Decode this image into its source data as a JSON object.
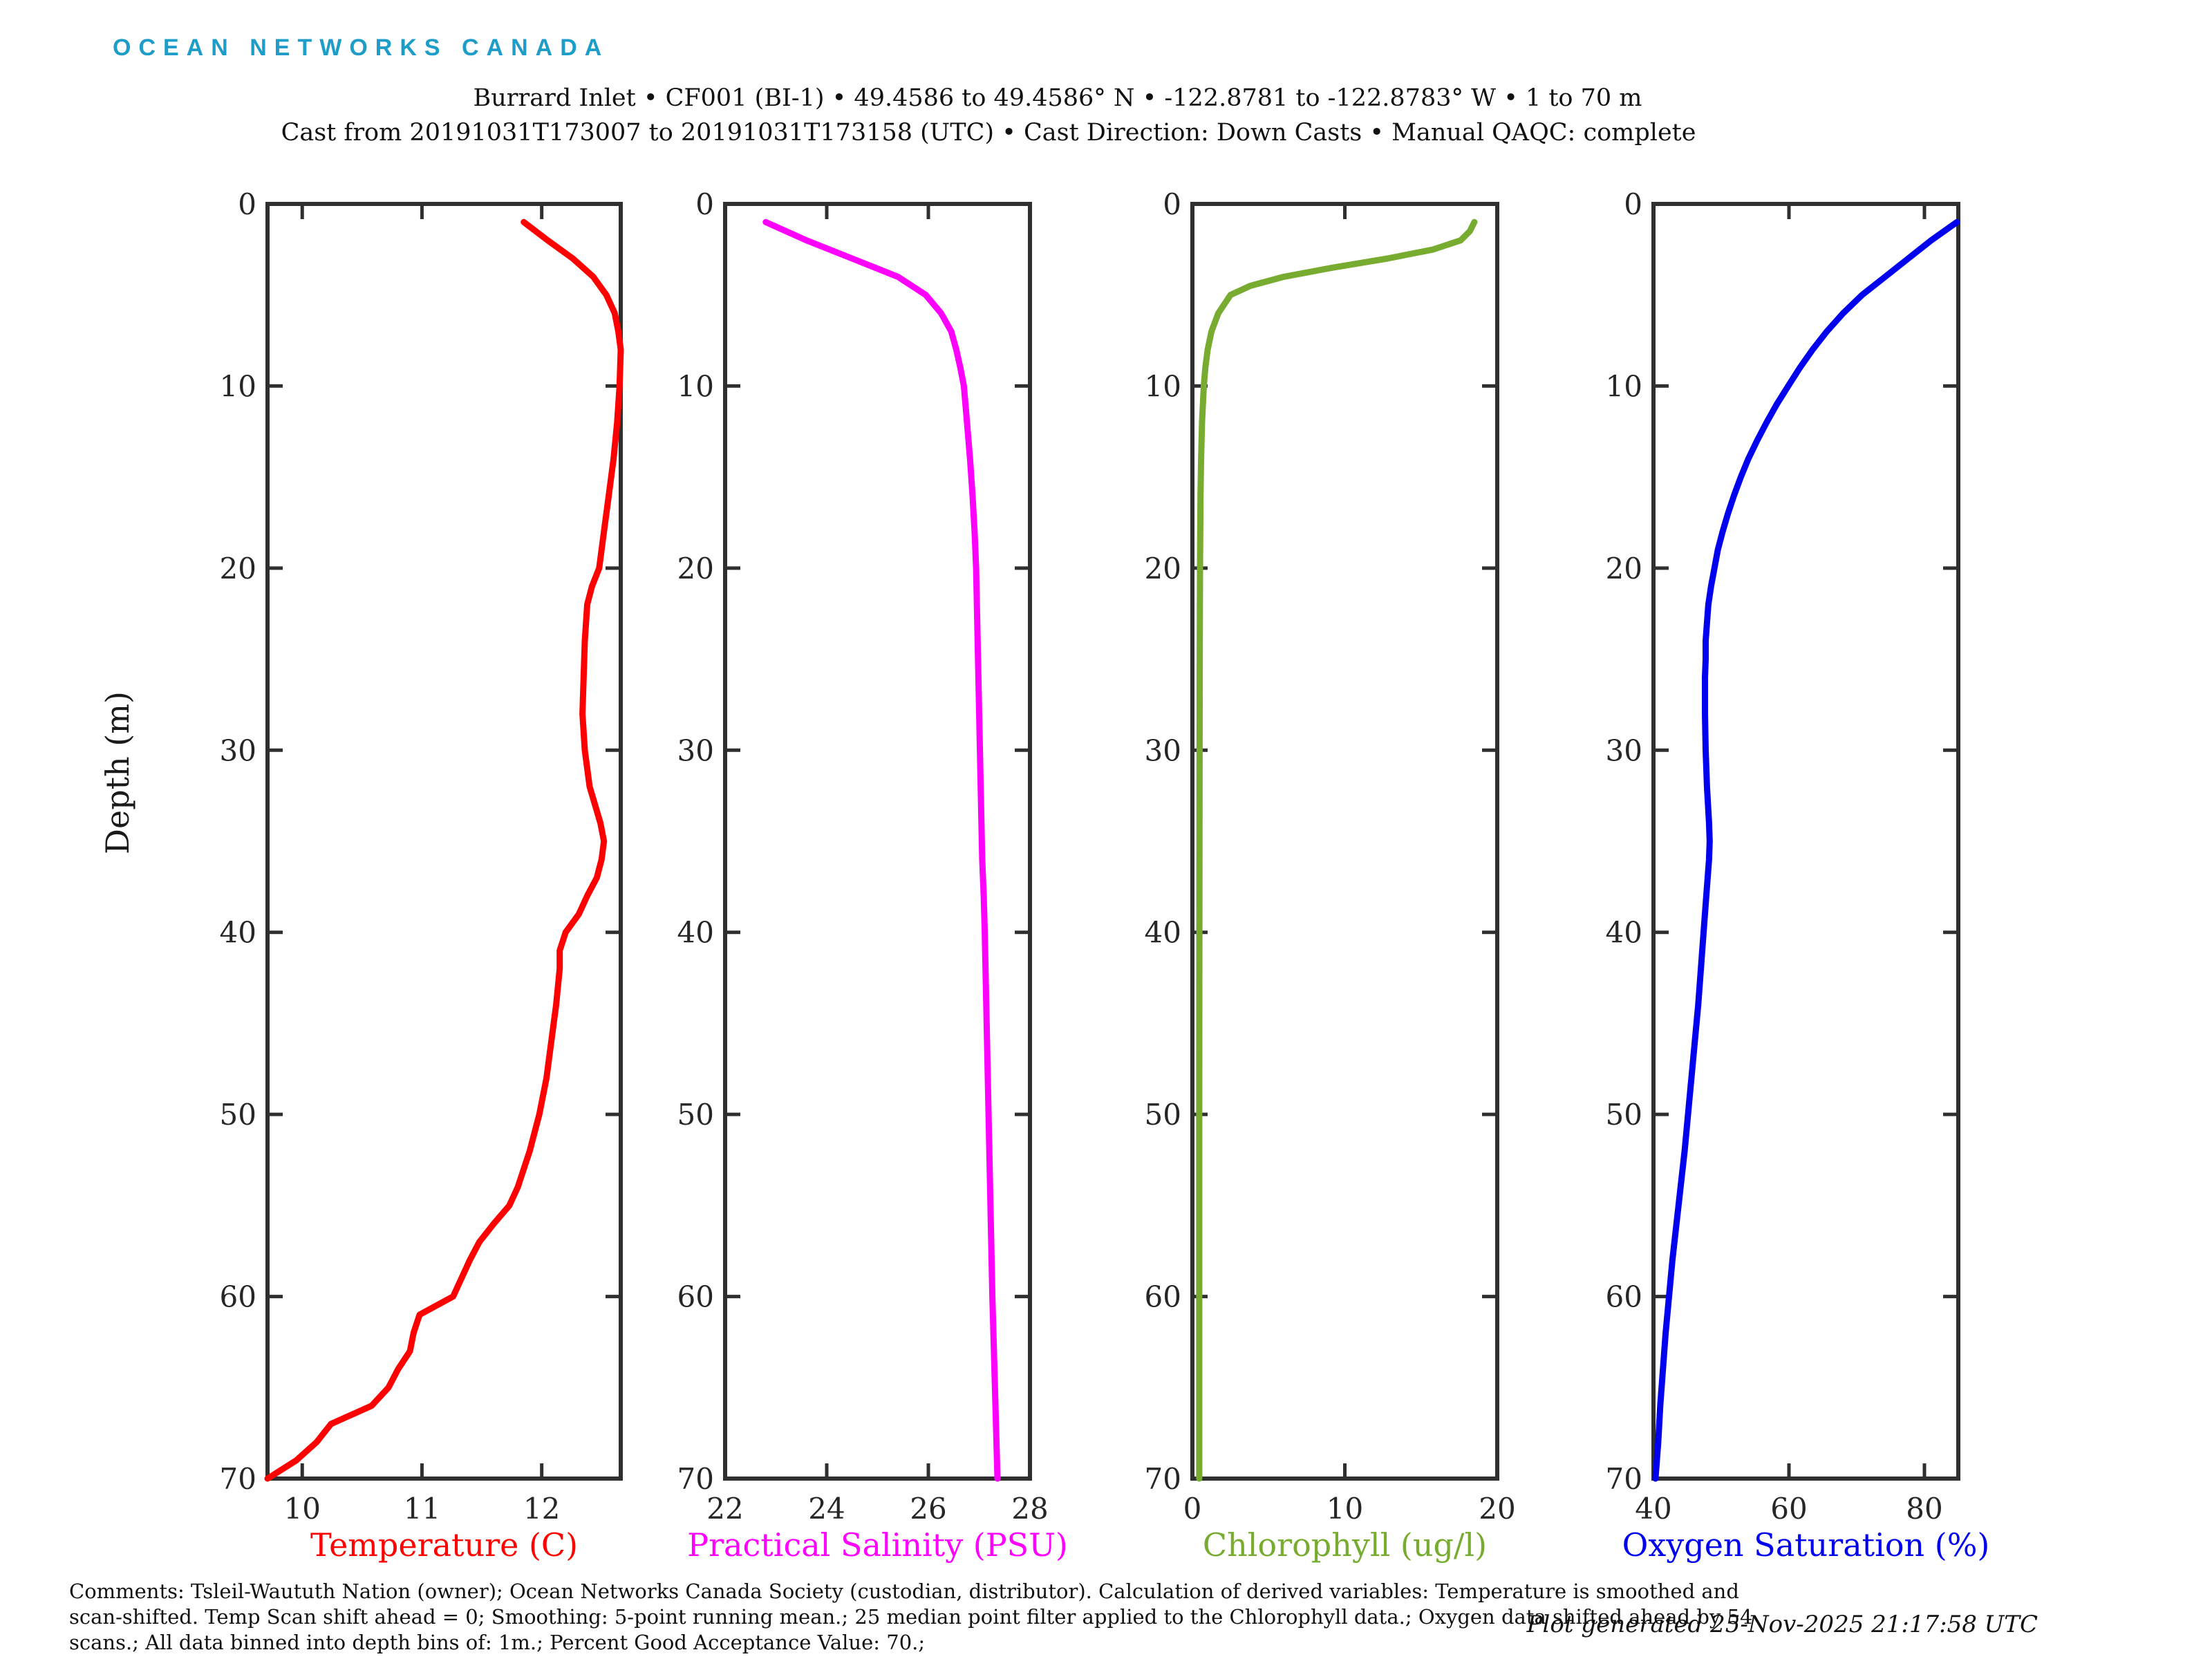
{
  "header": {
    "logo": {
      "text": "OCEAN NETWORKS CANADA",
      "color": "#1d9dc8"
    },
    "title_line1": "Burrard Inlet • CF001 (BI-1) • 49.4586 to 49.4586° N • -122.8781 to -122.8783° W • 1 to 70 m",
    "title_line2": "Cast from 20191031T173007 to 20191031T173158 (UTC) • Cast Direction: Down Casts • Manual QAQC: complete"
  },
  "footer": {
    "comments_lines": [
      "Comments: Tsleil-Waututh Nation (owner); Ocean Networks Canada Society (custodian, distributor). Calculation of derived variables: Temperature is smoothed and",
      "scan-shifted. Temp Scan shift ahead = 0; Smoothing: 5-point running mean.; 25 median point filter applied to the Chlorophyll data.; Oxygen data shifted ahead by 54",
      "scans.; All data binned into depth bins of: 1m.; Percent Good Acceptance Value: 70.;"
    ],
    "generated": "Plot generated 25-Nov-2025 21:17:58 UTC"
  },
  "chart_data": {
    "type": "line",
    "subtype": "depth-profiles",
    "ylabel": "Depth (m)",
    "ylim": [
      0,
      70
    ],
    "yticks": [
      0,
      10,
      20,
      30,
      40,
      50,
      60,
      70
    ],
    "grid": false,
    "axis_color": "#2f2f2f",
    "panels": [
      {
        "id": "temperature",
        "xlabel": "Temperature (C)",
        "color": "#ff0000",
        "xlim": [
          9.71,
          12.66
        ],
        "xticks": [
          10,
          11,
          12
        ],
        "points": [
          [
            1,
            11.85
          ],
          [
            2,
            12.05
          ],
          [
            3,
            12.26
          ],
          [
            4,
            12.43
          ],
          [
            5,
            12.54
          ],
          [
            6,
            12.61
          ],
          [
            7,
            12.64
          ],
          [
            8,
            12.66
          ],
          [
            10,
            12.65
          ],
          [
            12,
            12.63
          ],
          [
            14,
            12.6
          ],
          [
            16,
            12.56
          ],
          [
            18,
            12.52
          ],
          [
            20,
            12.48
          ],
          [
            21,
            12.42
          ],
          [
            22,
            12.38
          ],
          [
            24,
            12.36
          ],
          [
            26,
            12.35
          ],
          [
            28,
            12.34
          ],
          [
            30,
            12.36
          ],
          [
            32,
            12.4
          ],
          [
            34,
            12.49
          ],
          [
            35,
            12.52
          ],
          [
            36,
            12.5
          ],
          [
            37,
            12.46
          ],
          [
            38,
            12.38
          ],
          [
            39,
            12.31
          ],
          [
            40,
            12.2
          ],
          [
            41,
            12.15
          ],
          [
            42,
            12.15
          ],
          [
            44,
            12.12
          ],
          [
            46,
            12.08
          ],
          [
            48,
            12.04
          ],
          [
            50,
            11.98
          ],
          [
            52,
            11.9
          ],
          [
            54,
            11.8
          ],
          [
            55,
            11.73
          ],
          [
            56,
            11.6
          ],
          [
            57,
            11.48
          ],
          [
            58,
            11.4
          ],
          [
            59,
            11.33
          ],
          [
            60,
            11.26
          ],
          [
            61,
            10.98
          ],
          [
            62,
            10.93
          ],
          [
            63,
            10.9
          ],
          [
            64,
            10.8
          ],
          [
            65,
            10.72
          ],
          [
            66,
            10.58
          ],
          [
            67,
            10.24
          ],
          [
            68,
            10.12
          ],
          [
            69,
            9.95
          ],
          [
            70,
            9.71
          ]
        ]
      },
      {
        "id": "salinity",
        "xlabel": "Practical Salinity (PSU)",
        "color": "#ff00ff",
        "xlim": [
          22,
          28
        ],
        "xticks": [
          22,
          24,
          26,
          28
        ],
        "points": [
          [
            1,
            22.8
          ],
          [
            2,
            23.6
          ],
          [
            3,
            24.5
          ],
          [
            4,
            25.4
          ],
          [
            5,
            25.95
          ],
          [
            6,
            26.25
          ],
          [
            7,
            26.45
          ],
          [
            8,
            26.55
          ],
          [
            9,
            26.63
          ],
          [
            10,
            26.7
          ],
          [
            12,
            26.76
          ],
          [
            14,
            26.82
          ],
          [
            16,
            26.87
          ],
          [
            18,
            26.91
          ],
          [
            20,
            26.94
          ],
          [
            24,
            26.97
          ],
          [
            28,
            27.0
          ],
          [
            32,
            27.03
          ],
          [
            36,
            27.06
          ],
          [
            38,
            27.09
          ],
          [
            40,
            27.11
          ],
          [
            44,
            27.14
          ],
          [
            48,
            27.17
          ],
          [
            52,
            27.2
          ],
          [
            56,
            27.23
          ],
          [
            60,
            27.26
          ],
          [
            64,
            27.3
          ],
          [
            67,
            27.33
          ],
          [
            70,
            27.36
          ]
        ]
      },
      {
        "id": "chlorophyll",
        "xlabel": "Chlorophyll (ug/l)",
        "color": "#77ac30",
        "xlim": [
          0,
          20
        ],
        "xticks": [
          0,
          10,
          20
        ],
        "points": [
          [
            1,
            18.5
          ],
          [
            1.5,
            18.2
          ],
          [
            2,
            17.6
          ],
          [
            2.5,
            15.8
          ],
          [
            3,
            12.8
          ],
          [
            3.5,
            9.2
          ],
          [
            4,
            6.0
          ],
          [
            4.5,
            3.8
          ],
          [
            5,
            2.5
          ],
          [
            6,
            1.7
          ],
          [
            7,
            1.25
          ],
          [
            8,
            1.0
          ],
          [
            9,
            0.85
          ],
          [
            10,
            0.75
          ],
          [
            12,
            0.63
          ],
          [
            14,
            0.57
          ],
          [
            16,
            0.53
          ],
          [
            20,
            0.5
          ],
          [
            25,
            0.48
          ],
          [
            30,
            0.47
          ],
          [
            40,
            0.46
          ],
          [
            50,
            0.45
          ],
          [
            60,
            0.45
          ],
          [
            70,
            0.45
          ]
        ]
      },
      {
        "id": "oxygen",
        "xlabel": "Oxygen Saturation (%)",
        "color": "#0000ee",
        "xlim": [
          40,
          85
        ],
        "xticks": [
          40,
          60,
          80
        ],
        "points": [
          [
            1,
            84.8
          ],
          [
            2,
            81.0
          ],
          [
            3,
            77.6
          ],
          [
            4,
            74.2
          ],
          [
            5,
            70.8
          ],
          [
            6,
            68.0
          ],
          [
            7,
            65.6
          ],
          [
            8,
            63.5
          ],
          [
            9,
            61.6
          ],
          [
            10,
            59.9
          ],
          [
            11,
            58.2
          ],
          [
            12,
            56.7
          ],
          [
            13,
            55.3
          ],
          [
            14,
            54.0
          ],
          [
            15,
            52.9
          ],
          [
            16,
            51.9
          ],
          [
            17,
            51.0
          ],
          [
            18,
            50.2
          ],
          [
            19,
            49.5
          ],
          [
            20,
            49.0
          ],
          [
            21,
            48.5
          ],
          [
            22,
            48.1
          ],
          [
            23,
            47.9
          ],
          [
            24,
            47.7
          ],
          [
            25,
            47.7
          ],
          [
            26,
            47.6
          ],
          [
            28,
            47.6
          ],
          [
            30,
            47.7
          ],
          [
            32,
            47.9
          ],
          [
            34,
            48.2
          ],
          [
            35,
            48.3
          ],
          [
            36,
            48.2
          ],
          [
            37,
            48.0
          ],
          [
            38,
            47.8
          ],
          [
            40,
            47.4
          ],
          [
            42,
            47.0
          ],
          [
            44,
            46.6
          ],
          [
            46,
            46.1
          ],
          [
            48,
            45.6
          ],
          [
            50,
            45.1
          ],
          [
            52,
            44.6
          ],
          [
            54,
            44.0
          ],
          [
            56,
            43.4
          ],
          [
            58,
            42.8
          ],
          [
            60,
            42.3
          ],
          [
            62,
            41.8
          ],
          [
            64,
            41.4
          ],
          [
            66,
            41.0
          ],
          [
            68,
            40.7
          ],
          [
            69,
            40.5
          ],
          [
            70,
            40.3
          ]
        ]
      }
    ]
  }
}
